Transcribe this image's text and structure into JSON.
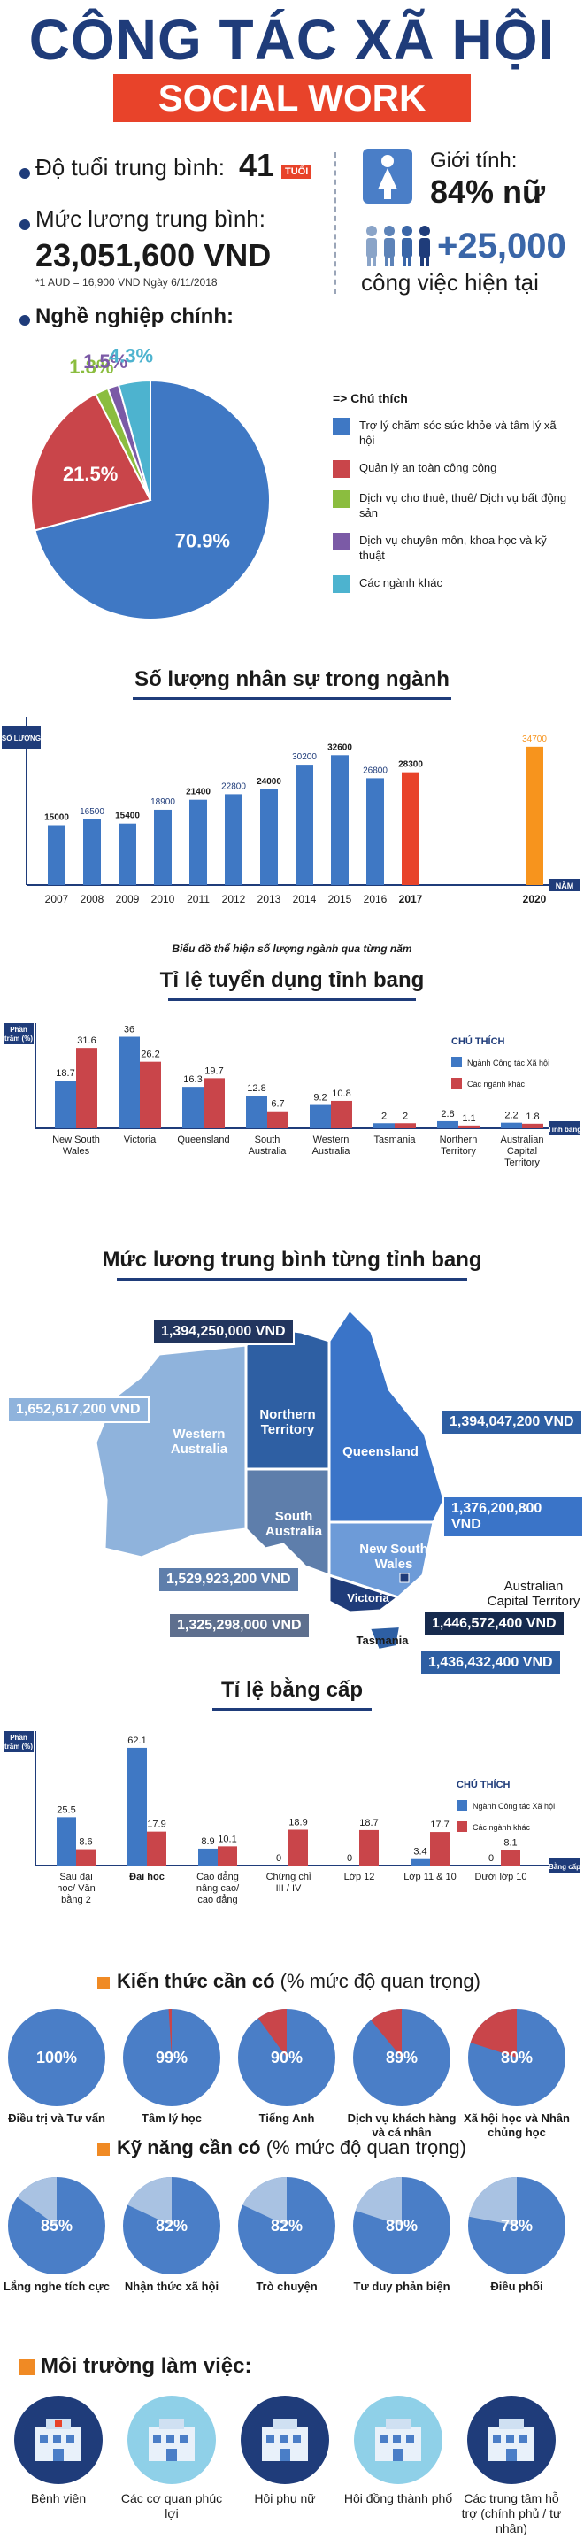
{
  "title": "CÔNG TÁC XÃ HỘI",
  "subtitle": "SOCIAL WORK",
  "stats": {
    "age_label": "Độ tuổi trung bình:",
    "age_value": "41",
    "age_unit": "TUỔI",
    "salary_label": "Mức lương trung bình:",
    "salary_value": "23,051,600 VND",
    "salary_note": "*1 AUD = 16,900 VND Ngày 6/11/2018",
    "gender_label": "Giới tính:",
    "gender_value": "84% nữ",
    "jobs_value": "+25,000",
    "jobs_label": "công việc hiện tại"
  },
  "occupations": {
    "heading": "Nghề nghiệp chính:",
    "legend_title": "=> Chú thích",
    "items": [
      {
        "label": "Trợ lý chăm sóc sức khỏe và tâm lý xã hội",
        "value": 70.9,
        "display": "70.9%",
        "color": "#3f78c4"
      },
      {
        "label": "Quản lý an toàn công cộng",
        "value": 21.5,
        "display": "21.5%",
        "color": "#c9454a"
      },
      {
        "label": "Dịch vụ cho thuê, thuê/ Dịch vụ bất động sản",
        "value": 1.8,
        "display": "1.8%",
        "color": "#8bbd3f"
      },
      {
        "label": "Dịch vụ chuyên môn, khoa học và kỹ thuật",
        "value": 1.5,
        "display": "1.5%",
        "color": "#7b5aa6"
      },
      {
        "label": "Các ngành khác",
        "value": 4.3,
        "display": "4.3%",
        "color": "#4db3cf"
      }
    ]
  },
  "workforce": {
    "heading": "Số lượng nhân sự trong ngành",
    "y_axis": "SỐ LƯỢNG",
    "x_axis": "NĂM",
    "caption": "Biểu đồ thể hiện số lượng ngành qua từng năm"
  },
  "recruit": {
    "heading": "Tỉ lệ tuyển dụng tỉnh bang",
    "y_axis": "Phần trăm (%)",
    "x_axis": "Tỉnh bang",
    "legend_title": "CHÚ THÍCH",
    "legend": [
      "Ngành Công tác Xã hội",
      "Các ngành khác"
    ]
  },
  "salary_map": {
    "heading": "Mức lương trung bình từng tỉnh bang",
    "states": [
      {
        "name": "Western Australia",
        "salary": "1,652,617,200 VND"
      },
      {
        "name": "Northern Territory",
        "salary": "1,394,250,000 VND"
      },
      {
        "name": "Queensland",
        "salary": "1,394,047,200 VND"
      },
      {
        "name": "South Australia",
        "salary": "1,529,923,200 VND"
      },
      {
        "name": "New South Wales",
        "salary": "1,376,200,800 VND"
      },
      {
        "name": "Australian Capital Territory",
        "salary": "1,446,572,400 VND"
      },
      {
        "name": "Victoria",
        "salary": "1,325,298,000 VND"
      },
      {
        "name": "Tasmania",
        "salary": "1,436,432,400 VND"
      }
    ]
  },
  "degree": {
    "heading": "Tỉ lệ bằng cấp",
    "y_axis": "Phần trăm (%)",
    "x_axis": "Bằng cấp",
    "legend_title": "CHÚ THÍCH",
    "legend": [
      "Ngành Công tác Xã hội",
      "Các ngành khác"
    ]
  },
  "knowledge": {
    "heading_bold": "Kiến thức cần có",
    "heading_rest": " (% mức độ quan trọng)",
    "items": [
      {
        "value": 100,
        "display": "100%",
        "label": "Điều trị và Tư vấn"
      },
      {
        "value": 99,
        "display": "99%",
        "label": "Tâm lý học"
      },
      {
        "value": 90,
        "display": "90%",
        "label": "Tiếng Anh"
      },
      {
        "value": 89,
        "display": "89%",
        "label": "Dịch vụ khách hàng và cá nhân"
      },
      {
        "value": 80,
        "display": "80%",
        "label": "Xã hội học và Nhân chủng học"
      }
    ]
  },
  "skills": {
    "heading_bold": "Kỹ năng cần có",
    "heading_rest": " (% mức độ quan trọng)",
    "items": [
      {
        "value": 85,
        "display": "85%",
        "label": "Lắng nghe tích cực"
      },
      {
        "value": 82,
        "display": "82%",
        "label": "Nhận thức xã hội"
      },
      {
        "value": 82,
        "display": "82%",
        "label": "Trò chuyện"
      },
      {
        "value": 80,
        "display": "80%",
        "label": "Tư duy phản biện"
      },
      {
        "value": 78,
        "display": "78%",
        "label": "Điều phối"
      }
    ]
  },
  "environment": {
    "heading": "Môi trường làm việc:",
    "items": [
      {
        "label": "Bệnh viện",
        "icon": "hospital-icon"
      },
      {
        "label": "Các cơ quan phúc lợi",
        "icon": "welfare-agency-icon"
      },
      {
        "label": "Hội phụ nữ",
        "icon": "women-union-icon"
      },
      {
        "label": "Hội đồng thành phố",
        "icon": "city-council-icon"
      },
      {
        "label": "Các trung tâm hỗ trợ (chính phủ / tư nhân)",
        "icon": "support-center-icon"
      }
    ]
  },
  "chart_data": [
    {
      "type": "pie",
      "title": "Nghề nghiệp chính:",
      "categories": [
        "Trợ lý chăm sóc sức khỏe và tâm lý xã hội",
        "Quản lý an toàn công cộng",
        "Dịch vụ cho thuê, thuê/ Dịch vụ bất động sản",
        "Dịch vụ chuyên môn, khoa học và kỹ thuật",
        "Các ngành khác"
      ],
      "values": [
        70.9,
        21.5,
        1.8,
        1.5,
        4.3
      ]
    },
    {
      "type": "bar",
      "title": "Số lượng nhân sự trong ngành",
      "xlabel": "NĂM",
      "ylabel": "SỐ LƯỢNG",
      "categories": [
        "2007",
        "2008",
        "2009",
        "2010",
        "2011",
        "2012",
        "2013",
        "2014",
        "2015",
        "2016",
        "2017",
        "2020"
      ],
      "values": [
        15000,
        16500,
        15400,
        18900,
        21400,
        22800,
        24000,
        30200,
        32600,
        26800,
        28300,
        34700
      ],
      "ylim": [
        0,
        40000
      ]
    },
    {
      "type": "bar",
      "title": "Tỉ lệ tuyển dụng tỉnh bang",
      "xlabel": "Tỉnh bang",
      "ylabel": "Phần trăm (%)",
      "categories": [
        "New South Wales",
        "Victoria",
        "Queensland",
        "South Australia",
        "Western Australia",
        "Tasmania",
        "Northern Territory",
        "Australian Capital Territory"
      ],
      "series": [
        {
          "name": "Ngành Công tác Xã hội",
          "values": [
            18.7,
            36.0,
            16.3,
            12.8,
            9.2,
            2.0,
            2.8,
            2.2
          ]
        },
        {
          "name": "Các ngành khác",
          "values": [
            31.6,
            26.2,
            19.7,
            6.7,
            10.8,
            2.0,
            1.1,
            1.8
          ]
        }
      ],
      "ylim": [
        0,
        40
      ]
    },
    {
      "type": "bar",
      "title": "Tỉ lệ bằng cấp",
      "xlabel": "Bằng cấp",
      "ylabel": "Phần trăm (%)",
      "categories": [
        "Sau đại học/ Văn bằng 2",
        "Đại học",
        "Cao đẳng nâng cao/ cao đẳng",
        "Chứng chỉ III / IV",
        "Lớp 12",
        "Lớp 11 & 10",
        "Dưới lớp 10"
      ],
      "series": [
        {
          "name": "Ngành Công tác Xã hội",
          "values": [
            25.5,
            62.1,
            8.9,
            0,
            0,
            3.4,
            0
          ]
        },
        {
          "name": "Các ngành khác",
          "values": [
            8.6,
            17.9,
            10.1,
            18.9,
            18.7,
            17.7,
            8.1
          ]
        }
      ],
      "ylim": [
        0,
        70
      ]
    }
  ]
}
